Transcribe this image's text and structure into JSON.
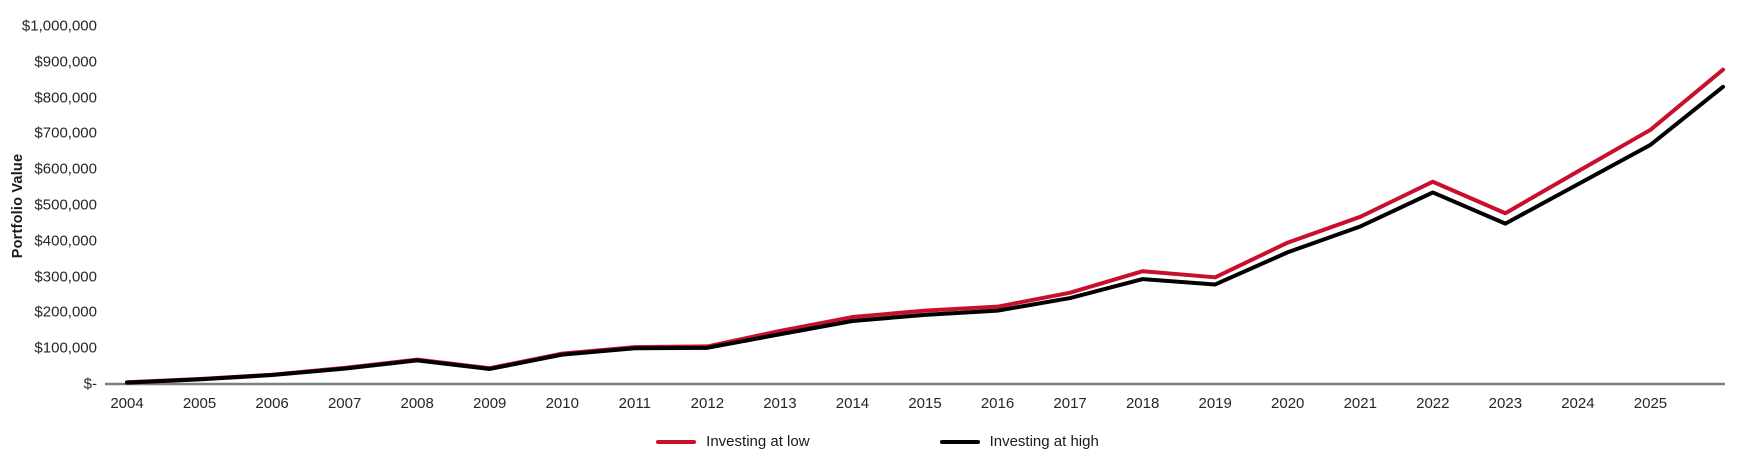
{
  "chart_data": {
    "type": "line",
    "title": "",
    "ylabel": "Portfolio Value",
    "xlabel": "",
    "ylim": [
      0,
      1000000
    ],
    "grid": false,
    "legend_position": "bottom-center",
    "ytick_labels": [
      "$-",
      "$100,000",
      "$200,000",
      "$300,000",
      "$400,000",
      "$500,000",
      "$600,000",
      "$700,000",
      "$800,000",
      "$900,000",
      "$1,000,000"
    ],
    "x_labels": [
      "2004",
      "2005",
      "2006",
      "2007",
      "2008",
      "2009",
      "2010",
      "2011",
      "2012",
      "2013",
      "2014",
      "2015",
      "2016",
      "2017",
      "2018",
      "2019",
      "2020",
      "2021",
      "2022",
      "2023",
      "2024",
      "2025"
    ],
    "note": "Series extend one unlabeled point past 2025 to the plot edge",
    "series": [
      {
        "name": "Investing at low",
        "color": "#C8102E",
        "values": [
          5000,
          14000,
          26000,
          45000,
          68000,
          44000,
          85000,
          103000,
          105000,
          148000,
          187000,
          205000,
          216000,
          255000,
          315000,
          298000,
          395000,
          467000,
          565000,
          477000,
          594000,
          710000,
          878000
        ]
      },
      {
        "name": "Investing at high",
        "color": "#000000",
        "values": [
          4000,
          13000,
          25000,
          43000,
          66000,
          42000,
          82000,
          100000,
          101000,
          139000,
          176000,
          193000,
          205000,
          240000,
          293000,
          278000,
          368000,
          440000,
          535000,
          448000,
          558000,
          668000,
          830000
        ]
      }
    ],
    "axis_line_color": "#7f7f7f",
    "text_color": "#262626"
  }
}
